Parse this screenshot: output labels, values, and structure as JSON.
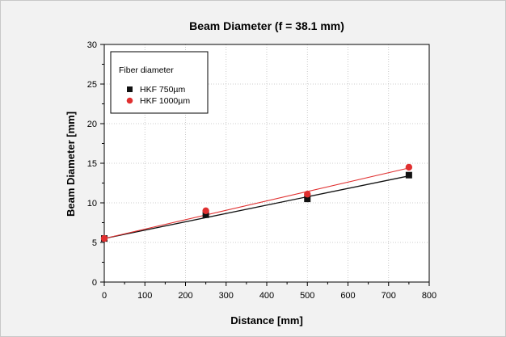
{
  "chart_data": {
    "type": "scatter",
    "title": "Beam Diameter (f = 38.1 mm)",
    "xlabel": "Distance [mm]",
    "ylabel": "Beam Diameter [mm]",
    "xlim": [
      0,
      800
    ],
    "ylim": [
      0,
      30
    ],
    "xticks": [
      "0",
      "100",
      "200",
      "300",
      "400",
      "500",
      "600",
      "700",
      "800"
    ],
    "yticks": [
      "0",
      "5",
      "10",
      "15",
      "20",
      "25",
      "30"
    ],
    "grid": true,
    "legend": {
      "title": "Fiber diameter",
      "placement": "top-left"
    },
    "series": [
      {
        "name": "HKF 750µm",
        "marker": "square",
        "color": "#111111",
        "points": [
          [
            0,
            5.5
          ],
          [
            250,
            8.5
          ],
          [
            500,
            10.5
          ],
          [
            750,
            13.5
          ]
        ],
        "fit": [
          [
            0,
            5.5
          ],
          [
            750,
            13.4
          ]
        ]
      },
      {
        "name": "HKF 1000µm",
        "marker": "circle",
        "color": "#e03030",
        "points": [
          [
            0,
            5.5
          ],
          [
            250,
            9.0
          ],
          [
            500,
            11.1
          ],
          [
            750,
            14.5
          ]
        ],
        "fit": [
          [
            0,
            5.5
          ],
          [
            750,
            14.4
          ]
        ]
      }
    ]
  }
}
